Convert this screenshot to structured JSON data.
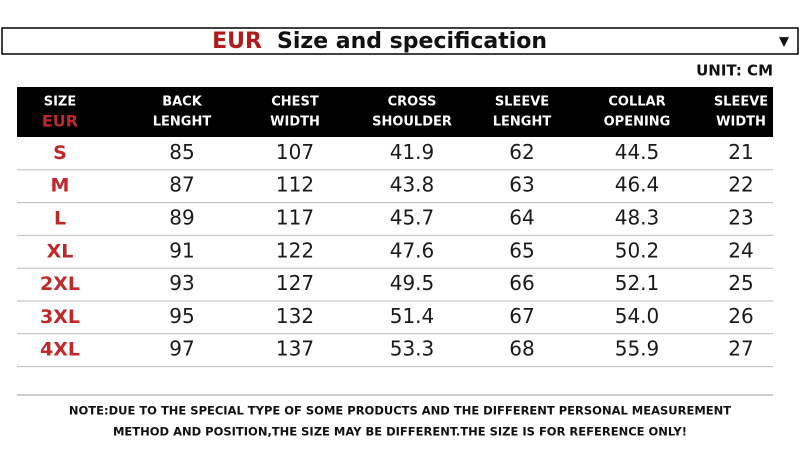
{
  "header": {
    "eur": "EUR",
    "title": "Size and specification",
    "arrow": "▼"
  },
  "unit": "UNIT: CM",
  "table": {
    "columns": [
      [
        "SIZE",
        "EUR"
      ],
      [
        "BACK",
        "LENGHT"
      ],
      [
        "CHEST",
        "WIDTH"
      ],
      [
        "CROSS",
        "SHOULDER"
      ],
      [
        "SLEEVE",
        "LENGHT"
      ],
      [
        "COLLAR",
        "OPENING"
      ],
      [
        "SLEEVE",
        "WIDTH"
      ]
    ],
    "rows": [
      [
        "S",
        "85",
        "107",
        "41.9",
        "62",
        "44.5",
        "21"
      ],
      [
        "M",
        "87",
        "112",
        "43.8",
        "63",
        "46.4",
        "22"
      ],
      [
        "L",
        "89",
        "117",
        "45.7",
        "64",
        "48.3",
        "23"
      ],
      [
        "XL",
        "91",
        "122",
        "47.6",
        "65",
        "50.2",
        "24"
      ],
      [
        "2XL",
        "93",
        "127",
        "49.5",
        "66",
        "52.1",
        "25"
      ],
      [
        "3XL",
        "95",
        "132",
        "51.4",
        "67",
        "54.0",
        "26"
      ],
      [
        "4XL",
        "97",
        "137",
        "53.3",
        "68",
        "55.9",
        "27"
      ]
    ]
  },
  "note": [
    "NOTE:DUE TO THE SPECIAL TYPE OF SOME PRODUCTS AND THE DIFFERENT PERSONAL MEASUREMENT",
    "METHOD AND POSITION,THE SIZE MAY BE DIFFERENT.THE SIZE IS FOR REFERENCE ONLY!"
  ]
}
